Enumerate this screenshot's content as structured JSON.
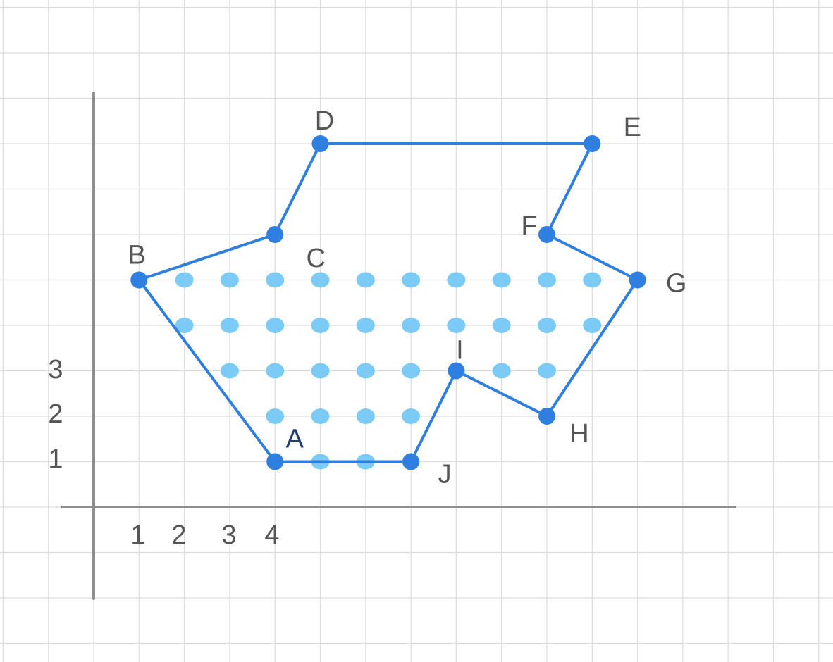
{
  "diagram": {
    "x_ticks": [
      "1",
      "2",
      "3",
      "4"
    ],
    "y_ticks": [
      "1",
      "2",
      "3"
    ],
    "vertices": [
      {
        "label": "A",
        "x": 4,
        "y": 1
      },
      {
        "label": "B",
        "x": 1,
        "y": 5
      },
      {
        "label": "C",
        "x": 4,
        "y": 6
      },
      {
        "label": "D",
        "x": 5,
        "y": 8
      },
      {
        "label": "E",
        "x": 11,
        "y": 8
      },
      {
        "label": "F",
        "x": 10,
        "y": 6
      },
      {
        "label": "G",
        "x": 12,
        "y": 5
      },
      {
        "label": "H",
        "x": 10,
        "y": 2
      },
      {
        "label": "I",
        "x": 8,
        "y": 3
      },
      {
        "label": "J",
        "x": 7,
        "y": 1
      }
    ],
    "polygon_order": [
      "A",
      "B",
      "C",
      "D",
      "E",
      "F",
      "G",
      "H",
      "I",
      "J"
    ],
    "interior_points": [
      {
        "x": 2,
        "y": 5
      },
      {
        "x": 3,
        "y": 5
      },
      {
        "x": 4,
        "y": 5
      },
      {
        "x": 5,
        "y": 5
      },
      {
        "x": 6,
        "y": 5
      },
      {
        "x": 7,
        "y": 5
      },
      {
        "x": 8,
        "y": 5
      },
      {
        "x": 9,
        "y": 5
      },
      {
        "x": 10,
        "y": 5
      },
      {
        "x": 11,
        "y": 5
      },
      {
        "x": 2,
        "y": 4
      },
      {
        "x": 3,
        "y": 4
      },
      {
        "x": 4,
        "y": 4
      },
      {
        "x": 5,
        "y": 4
      },
      {
        "x": 6,
        "y": 4
      },
      {
        "x": 7,
        "y": 4
      },
      {
        "x": 8,
        "y": 4
      },
      {
        "x": 9,
        "y": 4
      },
      {
        "x": 10,
        "y": 4
      },
      {
        "x": 11,
        "y": 4
      },
      {
        "x": 3,
        "y": 3
      },
      {
        "x": 4,
        "y": 3
      },
      {
        "x": 5,
        "y": 3
      },
      {
        "x": 6,
        "y": 3
      },
      {
        "x": 7,
        "y": 3
      },
      {
        "x": 9,
        "y": 3
      },
      {
        "x": 10,
        "y": 3
      },
      {
        "x": 4,
        "y": 2
      },
      {
        "x": 5,
        "y": 2
      },
      {
        "x": 6,
        "y": 2
      },
      {
        "x": 7,
        "y": 2
      },
      {
        "x": 5,
        "y": 1
      },
      {
        "x": 6,
        "y": 1
      }
    ],
    "colors": {
      "edge": "#2f7fe0",
      "interior_point": "#7ccbf6",
      "grid": "#dcdcdc",
      "axis": "#8e8e8e"
    }
  }
}
